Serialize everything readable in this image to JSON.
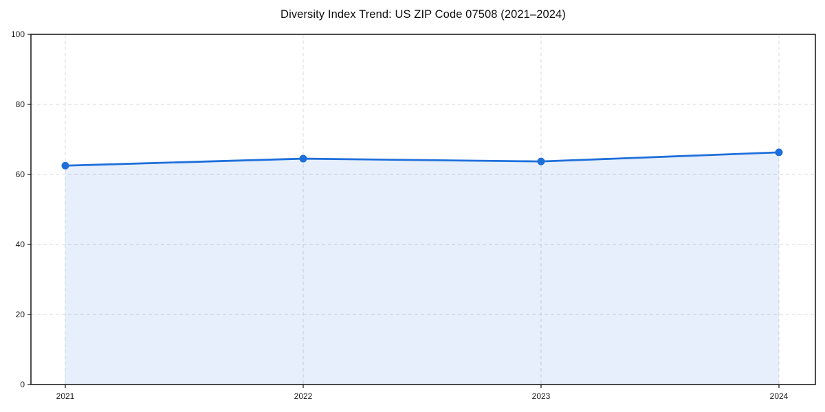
{
  "chart_data": {
    "type": "line",
    "title": "Diversity Index Trend: US ZIP Code 07508 (2021–2024)",
    "x": [
      "2021",
      "2022",
      "2023",
      "2024"
    ],
    "values": [
      62.5,
      64.5,
      63.7,
      66.3
    ],
    "xlabel": "",
    "ylabel": "",
    "ylim": [
      0,
      100
    ],
    "yticks": [
      0,
      20,
      40,
      60,
      80,
      100
    ],
    "grid": true,
    "grid_style": "dashed",
    "area_fill": true,
    "markers": true,
    "legend_position": "none",
    "colors": {
      "line": "#1f6fdb",
      "fill_light": "#e7effc",
      "grid": "#d8d8d8",
      "axis": "#111111",
      "tick_text": "#1a1a1a",
      "background": "#ffffff"
    }
  }
}
